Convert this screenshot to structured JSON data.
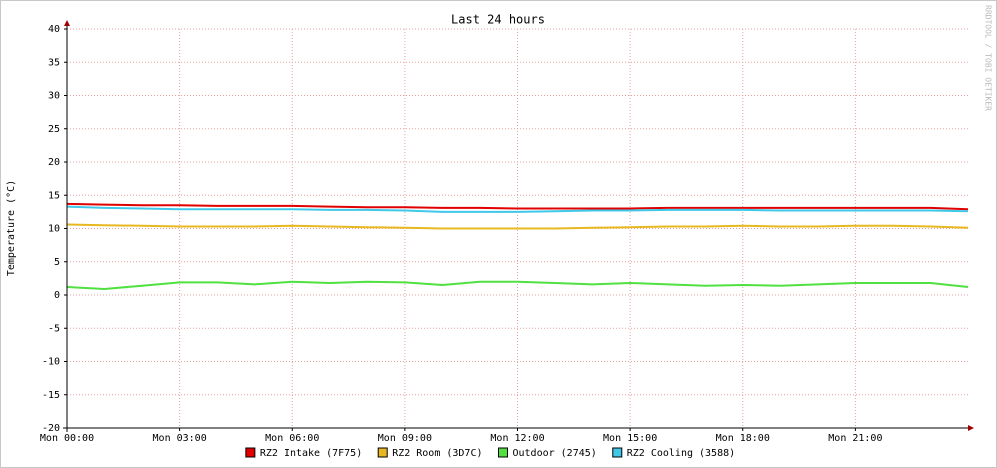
{
  "chart_data": {
    "type": "line",
    "title": "Last 24 hours",
    "ylabel": "Temperature (°C)",
    "watermark": "RRDTOOL / TOBI OETIKER",
    "x": [
      0,
      1,
      2,
      3,
      4,
      5,
      6,
      7,
      8,
      9,
      10,
      11,
      12,
      13,
      14,
      15,
      16,
      17,
      18,
      19,
      20,
      21,
      22,
      23,
      24
    ],
    "xlim": [
      0,
      24
    ],
    "xticks": [
      {
        "value": 0,
        "label": "Mon 00:00"
      },
      {
        "value": 3,
        "label": "Mon 03:00"
      },
      {
        "value": 6,
        "label": "Mon 06:00"
      },
      {
        "value": 9,
        "label": "Mon 09:00"
      },
      {
        "value": 12,
        "label": "Mon 12:00"
      },
      {
        "value": 15,
        "label": "Mon 15:00"
      },
      {
        "value": 18,
        "label": "Mon 18:00"
      },
      {
        "value": 21,
        "label": "Mon 21:00"
      }
    ],
    "ylim": [
      -20,
      40
    ],
    "yticks": [
      -20,
      -15,
      -10,
      -5,
      0,
      5,
      10,
      15,
      20,
      25,
      30,
      35,
      40
    ],
    "grid": true,
    "legend": "bottom",
    "series": [
      {
        "name": "RZ2 Intake (7F75)",
        "color": "#e00000",
        "values": [
          13.7,
          13.6,
          13.5,
          13.5,
          13.4,
          13.4,
          13.4,
          13.3,
          13.2,
          13.2,
          13.1,
          13.1,
          13.0,
          13.0,
          13.0,
          13.0,
          13.1,
          13.1,
          13.1,
          13.1,
          13.1,
          13.1,
          13.1,
          13.1,
          12.9
        ]
      },
      {
        "name": "RZ2 Room (3D7C)",
        "color": "#e8b820",
        "values": [
          10.6,
          10.5,
          10.4,
          10.3,
          10.3,
          10.3,
          10.4,
          10.3,
          10.2,
          10.1,
          10.0,
          10.0,
          10.0,
          10.0,
          10.1,
          10.2,
          10.3,
          10.3,
          10.4,
          10.3,
          10.3,
          10.4,
          10.4,
          10.3,
          10.1
        ]
      },
      {
        "name": "Outdoor (2745)",
        "color": "#50e040",
        "values": [
          1.2,
          0.9,
          1.4,
          1.9,
          1.9,
          1.6,
          2.0,
          1.8,
          2.0,
          1.9,
          1.5,
          2.0,
          2.0,
          1.8,
          1.6,
          1.8,
          1.6,
          1.4,
          1.5,
          1.4,
          1.6,
          1.8,
          1.8,
          1.8,
          1.2
        ]
      },
      {
        "name": "RZ2 Cooling (3588)",
        "color": "#40c8e8",
        "values": [
          13.3,
          13.1,
          13.0,
          12.9,
          12.9,
          12.9,
          12.9,
          12.8,
          12.8,
          12.7,
          12.5,
          12.5,
          12.5,
          12.6,
          12.7,
          12.7,
          12.8,
          12.8,
          12.8,
          12.7,
          12.7,
          12.7,
          12.7,
          12.7,
          12.6
        ]
      }
    ]
  }
}
